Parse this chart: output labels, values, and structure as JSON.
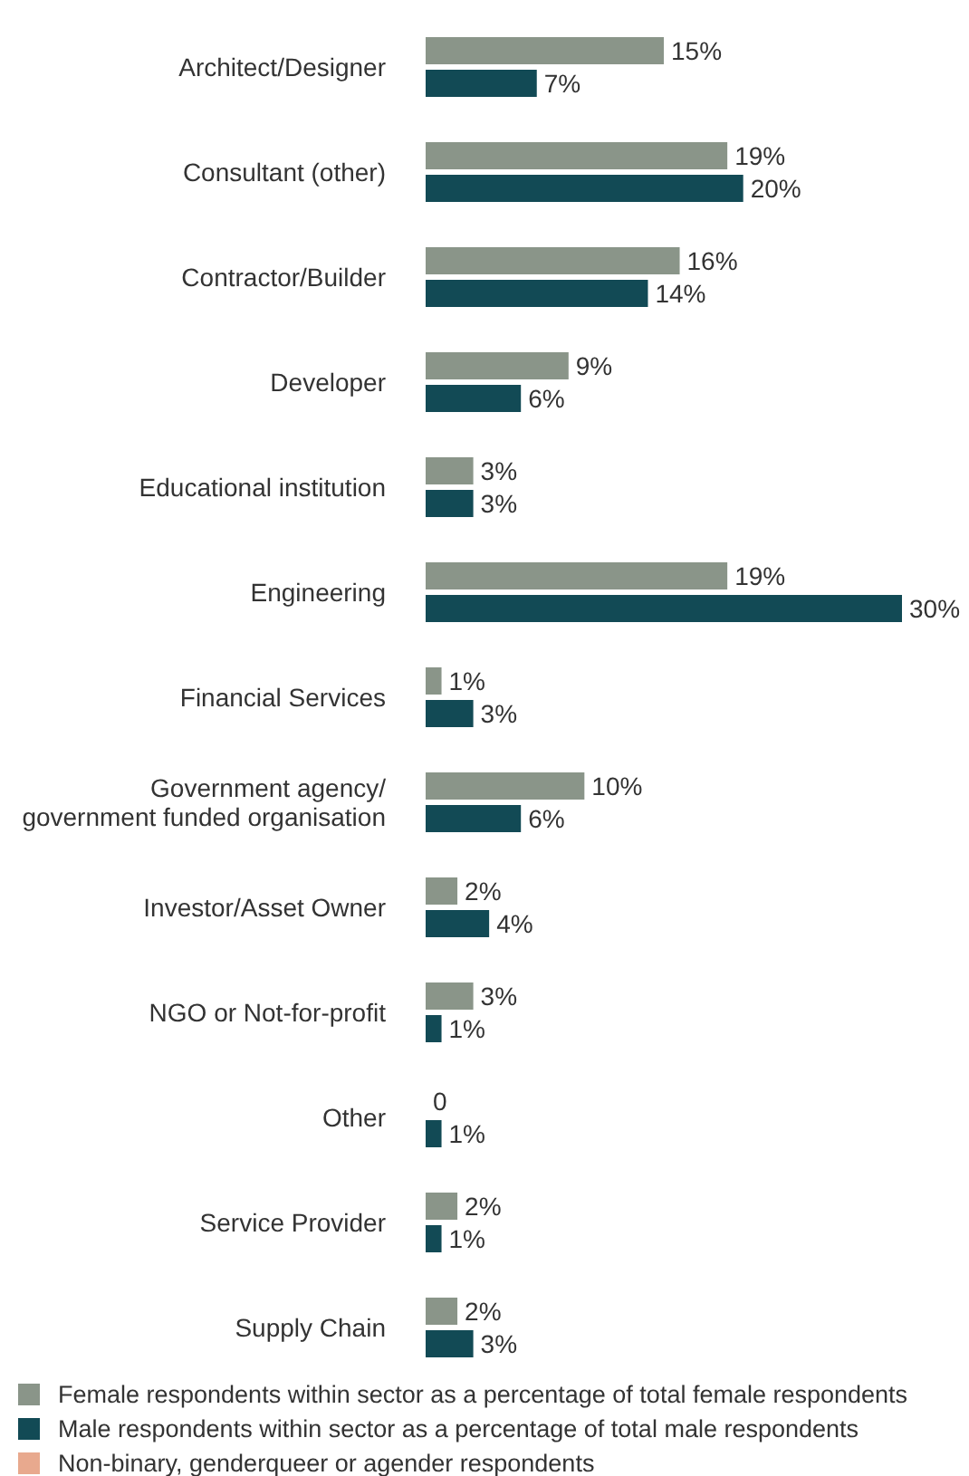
{
  "chart_data": {
    "type": "bar",
    "orientation": "horizontal",
    "legend": "bottom",
    "categories": [
      "Architect/Designer",
      "Consultant (other)",
      "Contractor/Builder",
      "Developer",
      "Educational institution",
      "Engineering",
      "Financial Services",
      "Government agency/\ngovernment funded organisation",
      "Investor/Asset Owner",
      "NGO or Not-for-profit",
      "Other",
      "Service Provider",
      "Supply Chain"
    ],
    "series": [
      {
        "name": "Female respondents within sector as a percentage of total female respondents",
        "color": "#8a9589",
        "values": [
          15,
          19,
          16,
          9,
          3,
          19,
          1,
          10,
          2,
          3,
          0,
          2,
          2
        ],
        "value_labels": [
          "15%",
          "19%",
          "16%",
          "9%",
          "3%",
          "19%",
          "1%",
          "10%",
          "2%",
          "3%",
          "0",
          "2%",
          "2%"
        ]
      },
      {
        "name": "Male respondents within sector as a percentage of total male respondents",
        "color": "#124a55",
        "values": [
          7,
          20,
          14,
          6,
          3,
          30,
          3,
          6,
          4,
          1,
          1,
          1,
          3
        ],
        "value_labels": [
          "7%",
          "20%",
          "14%",
          "6%",
          "3%",
          "30%",
          "3%",
          "6%",
          "4%",
          "1%",
          "1%",
          "1%",
          "3%"
        ]
      },
      {
        "name": "Non-binary, genderqueer or agender respondents",
        "color": "#e8a98e",
        "values": [
          null,
          null,
          null,
          null,
          null,
          null,
          null,
          null,
          null,
          null,
          null,
          null,
          null
        ]
      }
    ]
  }
}
